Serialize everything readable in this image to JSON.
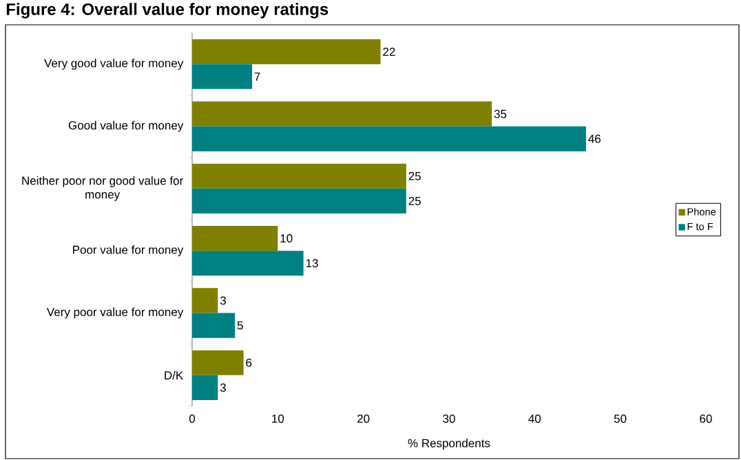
{
  "chart_data": {
    "type": "bar",
    "orientation": "horizontal",
    "title": "Figure 4: Overall value for money ratings",
    "xlabel": "% Respondents",
    "categories": [
      "Very good value for money",
      "Good value for money",
      "Neither poor nor good value for money",
      "Poor value for money",
      "Very poor value for money",
      "D/K"
    ],
    "series": [
      {
        "name": "Phone",
        "color": "#808000",
        "values": [
          22,
          35,
          25,
          10,
          3,
          6
        ]
      },
      {
        "name": "F to F",
        "color": "#008080",
        "values": [
          7,
          46,
          25,
          13,
          5,
          3
        ]
      }
    ],
    "xlim": [
      0,
      60
    ],
    "xticks": [
      0,
      10,
      20,
      30,
      40,
      50,
      60
    ],
    "data_labels": true,
    "legend": "right"
  }
}
